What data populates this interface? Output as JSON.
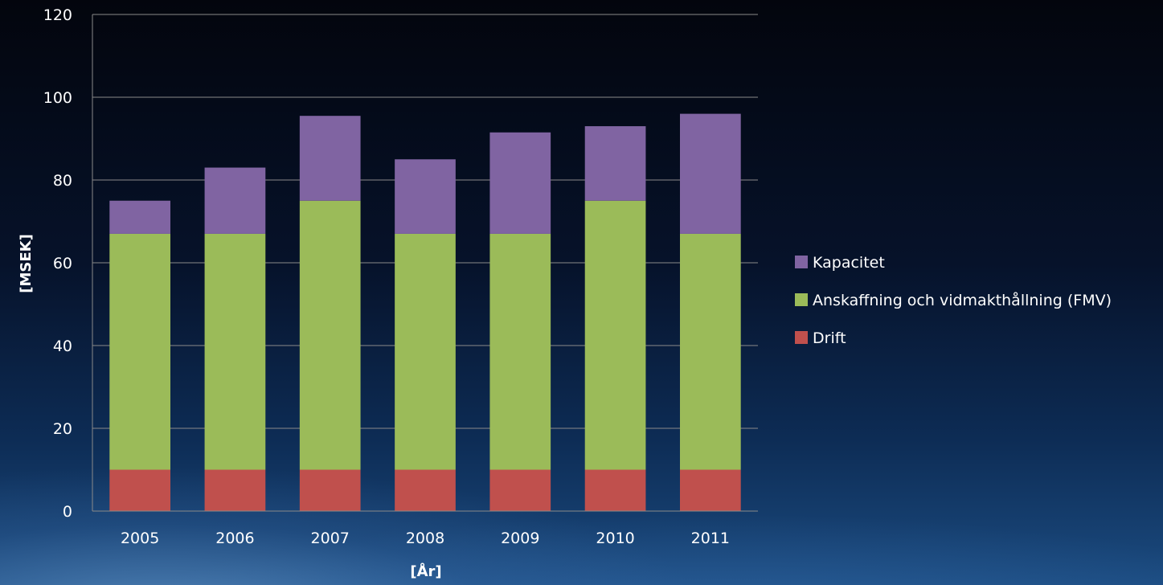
{
  "chart_data": {
    "type": "bar",
    "stacked": true,
    "categories": [
      "2005",
      "2006",
      "2007",
      "2008",
      "2009",
      "2010",
      "2011"
    ],
    "series": [
      {
        "name": "Drift",
        "color": "#c0504d",
        "values": [
          10,
          10,
          10,
          10,
          10,
          10,
          10
        ]
      },
      {
        "name": "Anskaffning och vidmakthållning (FMV)",
        "color": "#9bbb59",
        "values": [
          57,
          57,
          65,
          57,
          57,
          65,
          57
        ]
      },
      {
        "name": "Kapacitet",
        "color": "#8064a2",
        "values": [
          8,
          16,
          20.5,
          18,
          24.5,
          18,
          29
        ]
      }
    ],
    "title": "",
    "xlabel": "[År]",
    "ylabel": "[MSEK]",
    "ylim": [
      0,
      120
    ],
    "yticks": [
      0,
      20,
      40,
      60,
      80,
      100,
      120
    ],
    "grid": true,
    "legend_position": "right",
    "legend_order": [
      "Kapacitet",
      "Anskaffning och vidmakthållning (FMV)",
      "Drift"
    ]
  }
}
